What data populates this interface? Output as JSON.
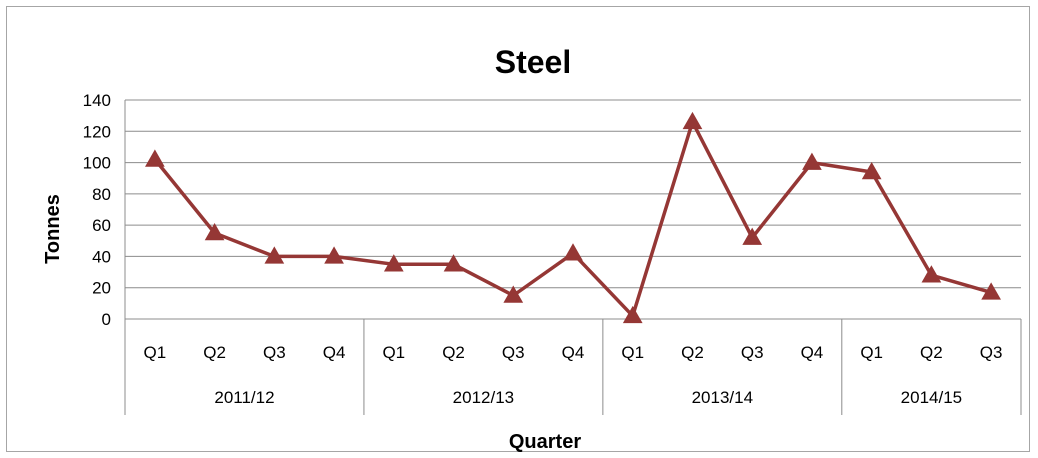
{
  "chart_data": {
    "type": "line",
    "title": "Steel",
    "xlabel": "Quarter",
    "ylabel": "Tonnes",
    "ylim": [
      0,
      140
    ],
    "yticks": [
      0,
      20,
      40,
      60,
      80,
      100,
      120,
      140
    ],
    "grid": "horizontal",
    "legend": "none",
    "groups": [
      {
        "label": "2011/12",
        "categories": [
          "Q1",
          "Q2",
          "Q3",
          "Q4"
        ]
      },
      {
        "label": "2012/13",
        "categories": [
          "Q1",
          "Q2",
          "Q3",
          "Q4"
        ]
      },
      {
        "label": "2013/14",
        "categories": [
          "Q1",
          "Q2",
          "Q3",
          "Q4"
        ]
      },
      {
        "label": "2014/15",
        "categories": [
          "Q1",
          "Q2",
          "Q3"
        ]
      }
    ],
    "series": [
      {
        "color": "#953735",
        "marker": "triangle",
        "values": [
          102,
          55,
          40,
          40,
          35,
          35,
          15,
          42,
          2,
          126,
          52,
          100,
          94,
          28,
          17
        ]
      }
    ]
  }
}
